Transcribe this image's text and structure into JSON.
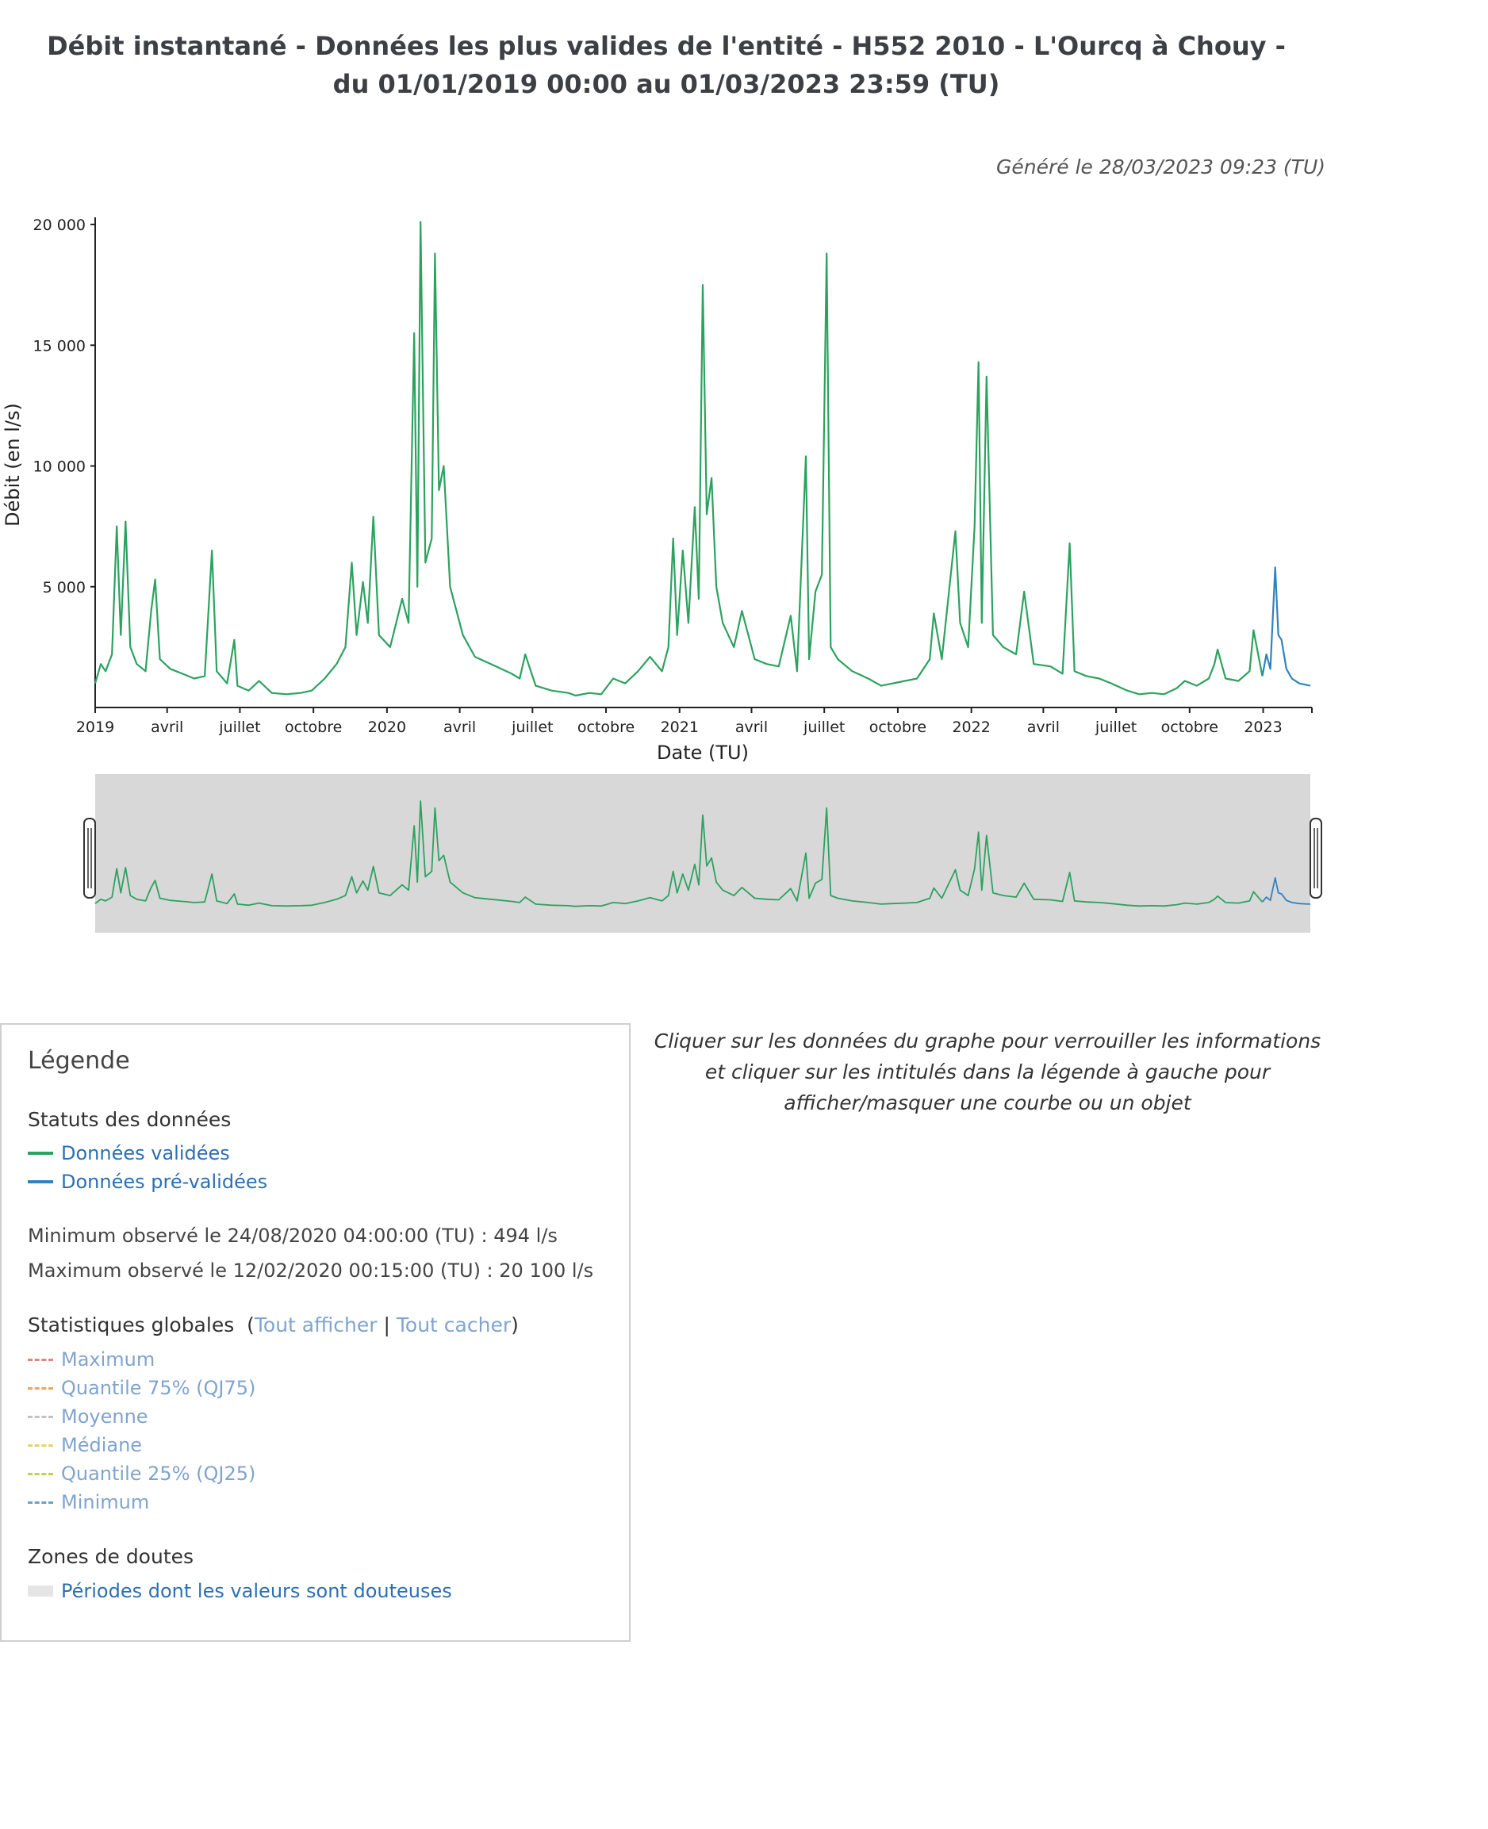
{
  "header": {
    "title": "Débit instantané - Données les plus valides de l'entité - H552 2010 - L'Ourcq à Chouy - du 01/01/2019 00:00 au 01/03/2023 23:59 (TU)",
    "generated": "Généré le 28/03/2023 09:23 (TU)"
  },
  "chart_data": {
    "type": "line",
    "title": "Débit instantané - Données les plus valides de l'entité - H552 2010 - L'Ourcq à Chouy - du 01/01/2019 00:00 au 01/03/2023 23:59 (TU)",
    "xlabel": "Date (TU)",
    "ylabel": "Débit (en l/s)",
    "ylim": [
      0,
      20100
    ],
    "xlim": [
      "2019-01-01",
      "2023-03-01"
    ],
    "yticks": [
      5000,
      10000,
      15000,
      20000
    ],
    "ytick_labels": [
      "5 000",
      "10 000",
      "15 000",
      "20 000"
    ],
    "xticks": [
      {
        "date": "2019-01-01",
        "label": "2019"
      },
      {
        "date": "2019-04-01",
        "label": "avril"
      },
      {
        "date": "2019-07-01",
        "label": "juillet"
      },
      {
        "date": "2019-10-01",
        "label": "octobre"
      },
      {
        "date": "2020-01-01",
        "label": "2020"
      },
      {
        "date": "2020-04-01",
        "label": "avril"
      },
      {
        "date": "2020-07-01",
        "label": "juillet"
      },
      {
        "date": "2020-10-01",
        "label": "octobre"
      },
      {
        "date": "2021-01-01",
        "label": "2021"
      },
      {
        "date": "2021-04-01",
        "label": "avril"
      },
      {
        "date": "2021-07-01",
        "label": "juillet"
      },
      {
        "date": "2021-10-01",
        "label": "octobre"
      },
      {
        "date": "2022-01-01",
        "label": "2022"
      },
      {
        "date": "2022-04-01",
        "label": "avril"
      },
      {
        "date": "2022-07-01",
        "label": "juillet"
      },
      {
        "date": "2022-10-01",
        "label": "octobre"
      },
      {
        "date": "2023-01-01",
        "label": "2023"
      }
    ],
    "grid": false,
    "series": [
      {
        "name": "Données validées",
        "color": "#2ca25f",
        "points": [
          [
            "2019-01-01",
            1000
          ],
          [
            "2019-01-08",
            1800
          ],
          [
            "2019-01-14",
            1500
          ],
          [
            "2019-01-22",
            2200
          ],
          [
            "2019-01-28",
            7500
          ],
          [
            "2019-02-02",
            3000
          ],
          [
            "2019-02-08",
            7700
          ],
          [
            "2019-02-14",
            2500
          ],
          [
            "2019-02-22",
            1800
          ],
          [
            "2019-03-05",
            1500
          ],
          [
            "2019-03-12",
            4000
          ],
          [
            "2019-03-17",
            5300
          ],
          [
            "2019-03-23",
            2000
          ],
          [
            "2019-04-05",
            1600
          ],
          [
            "2019-04-20",
            1400
          ],
          [
            "2019-05-05",
            1200
          ],
          [
            "2019-05-18",
            1300
          ],
          [
            "2019-05-27",
            6500
          ],
          [
            "2019-06-02",
            1500
          ],
          [
            "2019-06-15",
            1000
          ],
          [
            "2019-06-24",
            2800
          ],
          [
            "2019-06-28",
            900
          ],
          [
            "2019-07-12",
            700
          ],
          [
            "2019-07-25",
            1100
          ],
          [
            "2019-08-10",
            600
          ],
          [
            "2019-08-28",
            550
          ],
          [
            "2019-09-15",
            600
          ],
          [
            "2019-09-29",
            700
          ],
          [
            "2019-10-15",
            1200
          ],
          [
            "2019-10-30",
            1800
          ],
          [
            "2019-11-10",
            2500
          ],
          [
            "2019-11-18",
            6000
          ],
          [
            "2019-11-24",
            3000
          ],
          [
            "2019-12-02",
            5200
          ],
          [
            "2019-12-08",
            3500
          ],
          [
            "2019-12-15",
            7900
          ],
          [
            "2019-12-22",
            3000
          ],
          [
            "2020-01-05",
            2500
          ],
          [
            "2020-01-20",
            4500
          ],
          [
            "2020-01-28",
            3500
          ],
          [
            "2020-02-04",
            15500
          ],
          [
            "2020-02-08",
            5000
          ],
          [
            "2020-02-12",
            20100
          ],
          [
            "2020-02-18",
            6000
          ],
          [
            "2020-02-26",
            7000
          ],
          [
            "2020-03-01",
            18800
          ],
          [
            "2020-03-06",
            9000
          ],
          [
            "2020-03-12",
            10000
          ],
          [
            "2020-03-20",
            5000
          ],
          [
            "2020-04-05",
            3000
          ],
          [
            "2020-04-20",
            2100
          ],
          [
            "2020-05-10",
            1800
          ],
          [
            "2020-06-05",
            1400
          ],
          [
            "2020-06-15",
            1200
          ],
          [
            "2020-06-22",
            2200
          ],
          [
            "2020-07-05",
            900
          ],
          [
            "2020-07-25",
            700
          ],
          [
            "2020-08-15",
            600
          ],
          [
            "2020-08-24",
            494
          ],
          [
            "2020-09-10",
            600
          ],
          [
            "2020-09-25",
            550
          ],
          [
            "2020-10-10",
            1200
          ],
          [
            "2020-10-25",
            1000
          ],
          [
            "2020-11-10",
            1500
          ],
          [
            "2020-11-25",
            2100
          ],
          [
            "2020-12-10",
            1500
          ],
          [
            "2020-12-18",
            2500
          ],
          [
            "2020-12-24",
            7000
          ],
          [
            "2020-12-29",
            3000
          ],
          [
            "2021-01-05",
            6500
          ],
          [
            "2021-01-12",
            3500
          ],
          [
            "2021-01-20",
            8300
          ],
          [
            "2021-01-25",
            4500
          ],
          [
            "2021-01-30",
            17500
          ],
          [
            "2021-02-04",
            8000
          ],
          [
            "2021-02-10",
            9500
          ],
          [
            "2021-02-16",
            5000
          ],
          [
            "2021-02-24",
            3500
          ],
          [
            "2021-03-10",
            2500
          ],
          [
            "2021-03-20",
            4000
          ],
          [
            "2021-04-05",
            2000
          ],
          [
            "2021-04-20",
            1800
          ],
          [
            "2021-05-05",
            1700
          ],
          [
            "2021-05-20",
            3800
          ],
          [
            "2021-05-28",
            1500
          ],
          [
            "2021-06-08",
            10400
          ],
          [
            "2021-06-12",
            2000
          ],
          [
            "2021-06-20",
            4800
          ],
          [
            "2021-06-28",
            5500
          ],
          [
            "2021-07-04",
            18800
          ],
          [
            "2021-07-09",
            2500
          ],
          [
            "2021-07-18",
            2000
          ],
          [
            "2021-08-05",
            1500
          ],
          [
            "2021-08-25",
            1200
          ],
          [
            "2021-09-10",
            900
          ],
          [
            "2021-09-25",
            1000
          ],
          [
            "2021-10-10",
            1100
          ],
          [
            "2021-10-25",
            1200
          ],
          [
            "2021-11-10",
            2000
          ],
          [
            "2021-11-15",
            3900
          ],
          [
            "2021-11-25",
            2000
          ],
          [
            "2021-12-12",
            7300
          ],
          [
            "2021-12-18",
            3500
          ],
          [
            "2021-12-28",
            2500
          ],
          [
            "2022-01-05",
            7500
          ],
          [
            "2022-01-10",
            14300
          ],
          [
            "2022-01-14",
            3500
          ],
          [
            "2022-01-20",
            13700
          ],
          [
            "2022-01-28",
            3000
          ],
          [
            "2022-02-10",
            2500
          ],
          [
            "2022-02-26",
            2200
          ],
          [
            "2022-03-08",
            4800
          ],
          [
            "2022-03-20",
            1800
          ],
          [
            "2022-04-10",
            1700
          ],
          [
            "2022-04-25",
            1400
          ],
          [
            "2022-05-04",
            6800
          ],
          [
            "2022-05-10",
            1500
          ],
          [
            "2022-05-25",
            1300
          ],
          [
            "2022-06-10",
            1200
          ],
          [
            "2022-06-25",
            1000
          ],
          [
            "2022-07-15",
            700
          ],
          [
            "2022-07-30",
            550
          ],
          [
            "2022-08-15",
            600
          ],
          [
            "2022-08-30",
            550
          ],
          [
            "2022-09-15",
            800
          ],
          [
            "2022-09-25",
            1100
          ],
          [
            "2022-10-10",
            900
          ],
          [
            "2022-10-25",
            1200
          ],
          [
            "2022-11-01",
            1800
          ],
          [
            "2022-11-05",
            2400
          ],
          [
            "2022-11-15",
            1200
          ],
          [
            "2022-12-01",
            1100
          ],
          [
            "2022-12-15",
            1500
          ],
          [
            "2022-12-20",
            3200
          ],
          [
            "2022-12-31",
            1300
          ]
        ]
      },
      {
        "name": "Données pré-validées",
        "color": "#3182bd",
        "points": [
          [
            "2022-12-31",
            1300
          ],
          [
            "2023-01-05",
            2200
          ],
          [
            "2023-01-10",
            1600
          ],
          [
            "2023-01-16",
            5800
          ],
          [
            "2023-01-20",
            3000
          ],
          [
            "2023-01-24",
            2800
          ],
          [
            "2023-01-30",
            1600
          ],
          [
            "2023-02-06",
            1200
          ],
          [
            "2023-02-15",
            1000
          ],
          [
            "2023-02-22",
            950
          ],
          [
            "2023-03-01",
            900
          ]
        ]
      }
    ]
  },
  "legend": {
    "title": "Légende",
    "status_heading": "Statuts des données",
    "validated": "Données validées",
    "prevalidated": "Données pré-validées",
    "minimum_text": "Minimum observé le 24/08/2020 04:00:00 (TU) : 494 l/s",
    "maximum_text": "Maximum observé le 12/02/2020 00:15:00 (TU) : 20 100 l/s",
    "stats_heading": "Statistiques globales",
    "show_all": "Tout afficher",
    "hide_all": "Tout cacher",
    "stats": [
      {
        "label": "Maximum",
        "color": "#d98b78"
      },
      {
        "label": "Quantile 75% (QJ75)",
        "color": "#f0a45c"
      },
      {
        "label": "Moyenne",
        "color": "#c2c2c2"
      },
      {
        "label": "Médiane",
        "color": "#e6d36a"
      },
      {
        "label": "Quantile 25% (QJ25)",
        "color": "#bcd452"
      },
      {
        "label": "Minimum",
        "color": "#6d9fc9"
      }
    ],
    "zones_heading": "Zones de doutes",
    "zones_item": "Périodes dont les valeurs sont douteuses"
  },
  "hint": "Cliquer sur les données du graphe pour verrouiller les informations et cliquer sur les intitulés dans la légende à gauche pour afficher/masquer une courbe ou un objet"
}
